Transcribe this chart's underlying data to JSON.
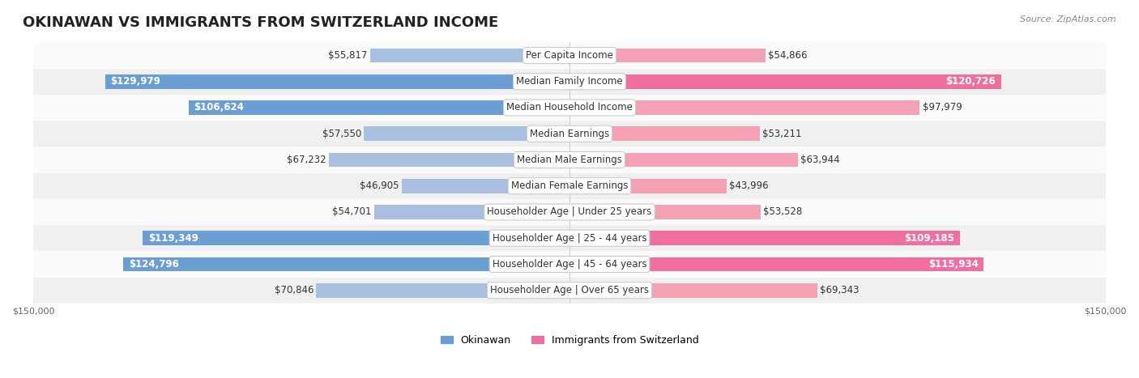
{
  "title": "OKINAWAN VS IMMIGRANTS FROM SWITZERLAND INCOME",
  "source": "Source: ZipAtlas.com",
  "categories": [
    "Per Capita Income",
    "Median Family Income",
    "Median Household Income",
    "Median Earnings",
    "Median Male Earnings",
    "Median Female Earnings",
    "Householder Age | Under 25 years",
    "Householder Age | 25 - 44 years",
    "Householder Age | 45 - 64 years",
    "Householder Age | Over 65 years"
  ],
  "okinawan_values": [
    55817,
    129979,
    106624,
    57550,
    67232,
    46905,
    54701,
    119349,
    124796,
    70846
  ],
  "swiss_values": [
    54866,
    120726,
    97979,
    53211,
    63944,
    43996,
    53528,
    109185,
    115934,
    69343
  ],
  "okinawan_labels": [
    "$55,817",
    "$129,979",
    "$106,624",
    "$57,550",
    "$67,232",
    "$46,905",
    "$54,701",
    "$119,349",
    "$124,796",
    "$70,846"
  ],
  "swiss_labels": [
    "$54,866",
    "$120,726",
    "$97,979",
    "$53,211",
    "$63,944",
    "$43,996",
    "$53,528",
    "$109,185",
    "$115,934",
    "$69,343"
  ],
  "okinawan_color": "#a8bfdf",
  "swiss_color": "#f4a0b5",
  "okinawan_color_bold": "#6b9fd4",
  "swiss_color_bold": "#f06fa0",
  "max_value": 150000,
  "xlim_label": "$150,000",
  "bar_height": 0.55,
  "bg_color": "#f5f5f5",
  "row_bg_light": "#fafafa",
  "row_bg_dark": "#f0f0f0",
  "title_fontsize": 13,
  "label_fontsize": 8.5,
  "category_fontsize": 8.5,
  "legend_fontsize": 9,
  "axis_label_fontsize": 8
}
